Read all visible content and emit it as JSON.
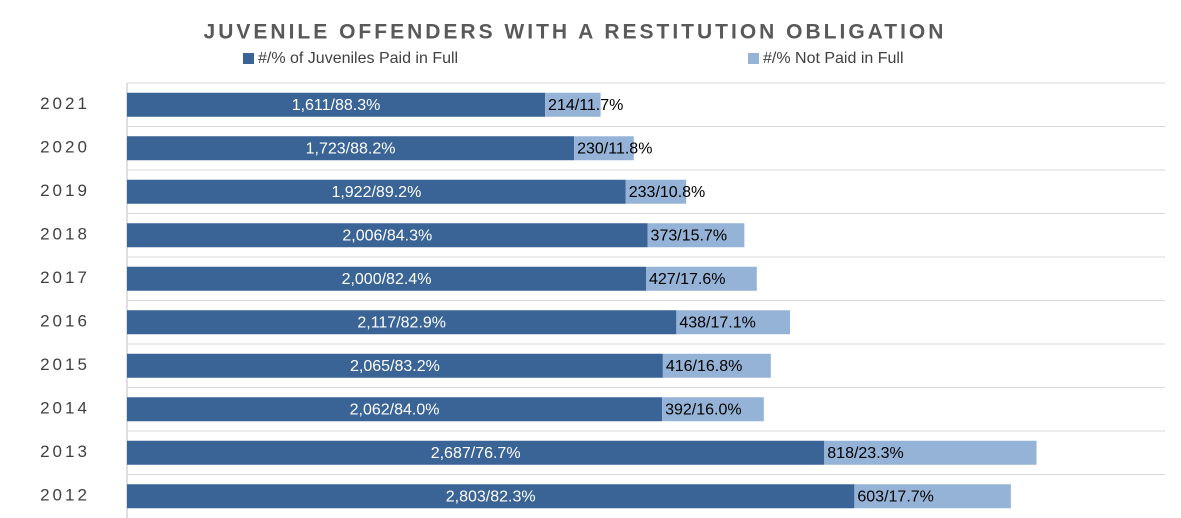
{
  "chart_data": {
    "type": "stacked_barh",
    "title": "JUVENILE OFFENDERS WITH A RESTITUTION OBLIGATION",
    "categories": [
      "2021",
      "2020",
      "2019",
      "2018",
      "2017",
      "2016",
      "2015",
      "2014",
      "2013",
      "2012"
    ],
    "xlim": [
      0,
      4000
    ],
    "legend": "top",
    "series": [
      {
        "name": "#/% of Juveniles Paid in Full",
        "color": "#3a6496",
        "values": [
          1611,
          1723,
          1922,
          2006,
          2000,
          2117,
          2065,
          2062,
          2687,
          2803
        ],
        "value_labels": [
          "1,611/88.3%",
          "1,723/88.2%",
          "1,922/89.2%",
          "2,006/84.3%",
          "2,000/82.4%",
          "2,117/82.9%",
          "2,065/83.2%",
          "2,062/84.0%",
          "2,687/76.7%",
          "2,803/82.3%"
        ]
      },
      {
        "name": "#/% Not Paid in Full",
        "color": "#95b3d7",
        "values": [
          214,
          230,
          233,
          373,
          427,
          438,
          416,
          392,
          818,
          603
        ],
        "value_labels": [
          "214/11.7%",
          "230/11.8%",
          "233/10.8%",
          "373/15.7%",
          "427/17.6%",
          "438/17.1%",
          "416/16.8%",
          "392/16.0%",
          "818/23.3%",
          "603/17.7%"
        ]
      }
    ]
  }
}
